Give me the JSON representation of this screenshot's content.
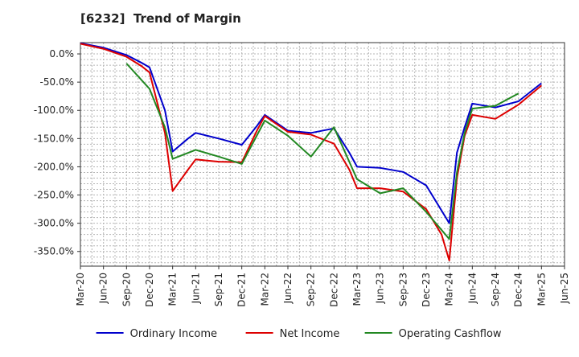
{
  "chart_data": {
    "type": "line",
    "title": "[6232]  Trend of Margin",
    "xlabel": "",
    "ylabel": "",
    "x_ticks": [
      "Mar-20",
      "Jun-20",
      "Sep-20",
      "Dec-20",
      "Mar-21",
      "Jun-21",
      "Sep-21",
      "Dec-21",
      "Mar-22",
      "Jun-22",
      "Sep-22",
      "Dec-22",
      "Mar-23",
      "Jun-23",
      "Sep-23",
      "Dec-23",
      "Mar-24",
      "Jun-24",
      "Sep-24",
      "Dec-24",
      "Mar-25",
      "Jun-25"
    ],
    "y_ticks": [
      0,
      -50,
      -100,
      -150,
      -200,
      -250,
      -300,
      -350
    ],
    "y_tick_labels": [
      "0.0%",
      "-50.0%",
      "-100.0%",
      "-150.0%",
      "-200.0%",
      "-250.0%",
      "-300.0%",
      "-350.0%"
    ],
    "ylim": [
      -376,
      20
    ],
    "grid": true,
    "legend_position": "bottom",
    "series": [
      {
        "name": "Ordinary Income",
        "color": "#0000cc",
        "points": [
          [
            "Mar-20",
            19
          ],
          [
            "Jun-20",
            11
          ],
          [
            "Sep-20",
            -2
          ],
          [
            "Nov-20",
            -16
          ],
          [
            "Dec-20",
            -24
          ],
          [
            "Feb-21",
            -100
          ],
          [
            "Mar-21",
            -173
          ],
          [
            "May-21",
            -150
          ],
          [
            "Jun-21",
            -140
          ],
          [
            "Sep-21",
            -150
          ],
          [
            "Dec-21",
            -161
          ],
          [
            "Feb-22",
            -127
          ],
          [
            "Mar-22",
            -108
          ],
          [
            "Jun-22",
            -136
          ],
          [
            "Sep-22",
            -140
          ],
          [
            "Dec-22",
            -132
          ],
          [
            "Feb-23",
            -175
          ],
          [
            "Mar-23",
            -200
          ],
          [
            "Jun-23",
            -202
          ],
          [
            "Sep-23",
            -209
          ],
          [
            "Dec-23",
            -233
          ],
          [
            "Mar-24",
            -300
          ],
          [
            "Apr-24",
            -175
          ],
          [
            "May-24",
            -130
          ],
          [
            "Jun-24",
            -88
          ],
          [
            "Sep-24",
            -95
          ],
          [
            "Dec-24",
            -84
          ],
          [
            "Mar-25",
            -52
          ]
        ]
      },
      {
        "name": "Net Income",
        "color": "#dd0000",
        "points": [
          [
            "Mar-20",
            18
          ],
          [
            "Jun-20",
            9
          ],
          [
            "Sep-20",
            -5
          ],
          [
            "Nov-20",
            -22
          ],
          [
            "Dec-20",
            -33
          ],
          [
            "Feb-21",
            -140
          ],
          [
            "Mar-21",
            -243
          ],
          [
            "May-21",
            -205
          ],
          [
            "Jun-21",
            -187
          ],
          [
            "Sep-21",
            -191
          ],
          [
            "Dec-21",
            -192
          ],
          [
            "Feb-22",
            -135
          ],
          [
            "Mar-22",
            -110
          ],
          [
            "Jun-22",
            -138
          ],
          [
            "Sep-22",
            -143
          ],
          [
            "Dec-22",
            -159
          ],
          [
            "Feb-23",
            -205
          ],
          [
            "Mar-23",
            -238
          ],
          [
            "Jun-23",
            -238
          ],
          [
            "Sep-23",
            -244
          ],
          [
            "Dec-23",
            -275
          ],
          [
            "Feb-24",
            -320
          ],
          [
            "Mar-24",
            -366
          ],
          [
            "Apr-24",
            -220
          ],
          [
            "May-24",
            -145
          ],
          [
            "Jun-24",
            -108
          ],
          [
            "Sep-24",
            -115
          ],
          [
            "Dec-24",
            -90
          ],
          [
            "Mar-25",
            -56
          ]
        ]
      },
      {
        "name": "Operating Cashflow",
        "color": "#228822",
        "points": [
          [
            "Sep-20",
            -17
          ],
          [
            "Dec-20",
            -62
          ],
          [
            "Feb-21",
            -130
          ],
          [
            "Mar-21",
            -186
          ],
          [
            "Jun-21",
            -170
          ],
          [
            "Sep-21",
            -182
          ],
          [
            "Dec-21",
            -195
          ],
          [
            "Mar-22",
            -118
          ],
          [
            "Jun-22",
            -145
          ],
          [
            "Sep-22",
            -182
          ],
          [
            "Dec-22",
            -130
          ],
          [
            "Mar-23",
            -222
          ],
          [
            "Jun-23",
            -247
          ],
          [
            "Sep-23",
            -238
          ],
          [
            "Dec-23",
            -280
          ],
          [
            "Mar-24",
            -328
          ],
          [
            "Apr-24",
            -210
          ],
          [
            "May-24",
            -140
          ],
          [
            "Jun-24",
            -97
          ],
          [
            "Sep-24",
            -92
          ],
          [
            "Dec-24",
            -70
          ]
        ]
      }
    ]
  }
}
